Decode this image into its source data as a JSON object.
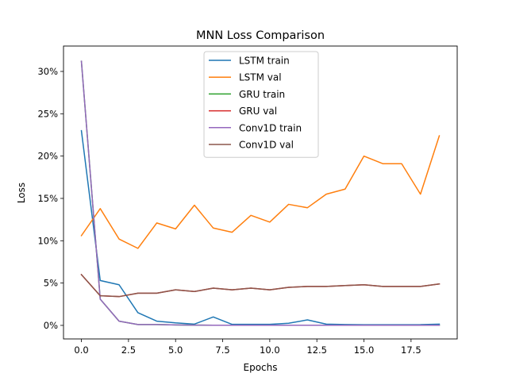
{
  "chart_data": {
    "type": "line",
    "title": "MNN Loss Comparison",
    "xlabel": "Epochs",
    "ylabel": "Loss",
    "xlim": [
      -0.95,
      19.95
    ],
    "ylim": [
      -0.016,
      0.33
    ],
    "x": [
      0,
      1,
      2,
      3,
      4,
      5,
      6,
      7,
      8,
      9,
      10,
      11,
      12,
      13,
      14,
      15,
      16,
      17,
      18,
      19
    ],
    "xticks": [
      0,
      2.5,
      5,
      7.5,
      10,
      12.5,
      15,
      17.5
    ],
    "xtick_labels": [
      "0.0",
      "2.5",
      "5.0",
      "7.5",
      "10.0",
      "12.5",
      "15.0",
      "17.5"
    ],
    "yticks": [
      0,
      0.05,
      0.1,
      0.15,
      0.2,
      0.25,
      0.3
    ],
    "ytick_labels": [
      "0%",
      "5%",
      "10%",
      "15%",
      "20%",
      "25%",
      "30%"
    ],
    "grid": false,
    "legend_position": "upper-center",
    "series": [
      {
        "name": "LSTM train",
        "color": "#1f77b4",
        "values": [
          0.23,
          0.053,
          0.048,
          0.015,
          0.005,
          0.003,
          0.0015,
          0.01,
          0.0012,
          0.0012,
          0.0012,
          0.0025,
          0.0065,
          0.0015,
          0.001,
          0.0008,
          0.0008,
          0.0008,
          0.0009,
          0.0015
        ]
      },
      {
        "name": "LSTM val",
        "color": "#ff7f0e",
        "values": [
          0.106,
          0.138,
          0.102,
          0.091,
          0.121,
          0.114,
          0.142,
          0.115,
          0.11,
          0.13,
          0.122,
          0.143,
          0.139,
          0.155,
          0.161,
          0.2,
          0.191,
          0.191,
          0.155,
          0.224
        ]
      },
      {
        "name": "GRU train",
        "color": "#2ca02c",
        "values": [
          0.312,
          0.031,
          0.005,
          0.001,
          0.001,
          0.0005,
          0.0003,
          0.0002,
          0.0002,
          0.0002,
          0.0002,
          0.0002,
          0.0002,
          0.0002,
          0.0002,
          0.0002,
          0.0002,
          0.0002,
          0.0002,
          0.0002
        ]
      },
      {
        "name": "GRU val",
        "color": "#d62728",
        "values": [
          0.06,
          0.035,
          0.034,
          0.038,
          0.038,
          0.042,
          0.04,
          0.044,
          0.042,
          0.044,
          0.042,
          0.045,
          0.046,
          0.046,
          0.047,
          0.048,
          0.046,
          0.046,
          0.046,
          0.049
        ]
      },
      {
        "name": "Conv1D train",
        "color": "#9467bd",
        "values": [
          0.312,
          0.031,
          0.005,
          0.001,
          0.001,
          0.0005,
          0.0003,
          0.0002,
          0.0002,
          0.0002,
          0.0002,
          0.0002,
          0.0002,
          0.0002,
          0.0002,
          0.0002,
          0.0002,
          0.0002,
          0.0002,
          0.0002
        ]
      },
      {
        "name": "Conv1D val",
        "color": "#8c564b",
        "values": [
          0.06,
          0.035,
          0.034,
          0.038,
          0.038,
          0.042,
          0.04,
          0.044,
          0.042,
          0.044,
          0.042,
          0.045,
          0.046,
          0.046,
          0.047,
          0.048,
          0.046,
          0.046,
          0.046,
          0.049
        ]
      }
    ]
  }
}
